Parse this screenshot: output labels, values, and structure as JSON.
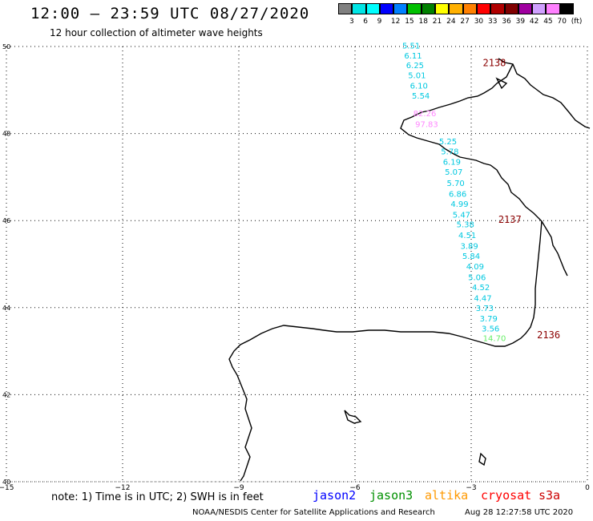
{
  "title": "12:00 – 23:59 UTC 08/27/2020",
  "subtitle": "12 hour collection of altimeter wave heights",
  "legend": {
    "colors": [
      "#808080",
      "#00e5e5",
      "#00ffff",
      "#0000ff",
      "#0080ff",
      "#00c000",
      "#008000",
      "#ffff00",
      "#ffb000",
      "#ff8000",
      "#ff0000",
      "#b00000",
      "#800000",
      "#a000a0",
      "#d0a0ff",
      "#ff80ff",
      "#000000"
    ],
    "labels": [
      "3",
      "6",
      "9",
      "12",
      "15",
      "18",
      "21",
      "24",
      "27",
      "30",
      "33",
      "36",
      "39",
      "42",
      "45",
      "70",
      "(ft)"
    ]
  },
  "axes": {
    "x_ticks": [
      "−15",
      "−12",
      "−9",
      "−6",
      "−3",
      "0"
    ],
    "y_ticks": [
      "50",
      "48",
      "46",
      "44",
      "42",
      "40"
    ]
  },
  "chart_data": {
    "type": "scatter",
    "xlim": [
      -15,
      0
    ],
    "ylim": [
      40,
      50
    ],
    "grid": true,
    "passes": [
      {
        "label": "2138",
        "color": "#8b0000",
        "lon": -2.7,
        "lat": 49.55
      },
      {
        "label": "2137",
        "color": "#8b0000",
        "lon": -2.3,
        "lat": 45.95
      },
      {
        "label": "2136",
        "color": "#8b0000",
        "lon": -1.3,
        "lat": 43.3
      }
    ],
    "points": [
      {
        "lon": -4.55,
        "lat": 49.95,
        "value": "5.51",
        "color": "#00c8e0"
      },
      {
        "lon": -4.5,
        "lat": 49.72,
        "value": "6.11",
        "color": "#00c8e0"
      },
      {
        "lon": -4.45,
        "lat": 49.5,
        "value": "6.25",
        "color": "#00c8e0"
      },
      {
        "lon": -4.4,
        "lat": 49.27,
        "value": "5.01",
        "color": "#00c8e0"
      },
      {
        "lon": -4.35,
        "lat": 49.03,
        "value": "6.10",
        "color": "#00c8e0"
      },
      {
        "lon": -4.3,
        "lat": 48.8,
        "value": "5.54",
        "color": "#00c8e0"
      },
      {
        "lon": -4.2,
        "lat": 48.4,
        "value": "82.26",
        "color": "#ff88ff"
      },
      {
        "lon": -4.15,
        "lat": 48.15,
        "value": "97.83",
        "color": "#ff88ff"
      },
      {
        "lon": -3.6,
        "lat": 47.75,
        "value": "5.25",
        "color": "#00c8e0"
      },
      {
        "lon": -3.55,
        "lat": 47.52,
        "value": "5.78",
        "color": "#00c8e0"
      },
      {
        "lon": -3.5,
        "lat": 47.28,
        "value": "6.19",
        "color": "#00c8e0"
      },
      {
        "lon": -3.45,
        "lat": 47.05,
        "value": "5.07",
        "color": "#00c8e0"
      },
      {
        "lon": -3.4,
        "lat": 46.8,
        "value": "5.70",
        "color": "#00c8e0"
      },
      {
        "lon": -3.35,
        "lat": 46.55,
        "value": "6.86",
        "color": "#00c8e0"
      },
      {
        "lon": -3.3,
        "lat": 46.32,
        "value": "4.99",
        "color": "#00c8e0"
      },
      {
        "lon": -3.25,
        "lat": 46.07,
        "value": "5.47",
        "color": "#00c8e0"
      },
      {
        "lon": -3.15,
        "lat": 45.85,
        "value": "5.38",
        "color": "#00c8e0"
      },
      {
        "lon": -3.1,
        "lat": 45.6,
        "value": "4.51",
        "color": "#00c8e0"
      },
      {
        "lon": -3.05,
        "lat": 45.35,
        "value": "3.89",
        "color": "#00c8e0"
      },
      {
        "lon": -3.0,
        "lat": 45.12,
        "value": "5.84",
        "color": "#00c8e0"
      },
      {
        "lon": -2.9,
        "lat": 44.88,
        "value": "4.09",
        "color": "#00c8e0"
      },
      {
        "lon": -2.85,
        "lat": 44.63,
        "value": "5.06",
        "color": "#00c8e0"
      },
      {
        "lon": -2.75,
        "lat": 44.4,
        "value": "4.52",
        "color": "#00c8e0"
      },
      {
        "lon": -2.7,
        "lat": 44.15,
        "value": "4.47",
        "color": "#00c8e0"
      },
      {
        "lon": -2.65,
        "lat": 43.92,
        "value": "3.73",
        "color": "#00c8e0"
      },
      {
        "lon": -2.55,
        "lat": 43.68,
        "value": "3.79",
        "color": "#00c8e0"
      },
      {
        "lon": -2.5,
        "lat": 43.45,
        "value": "3.56",
        "color": "#00c8e0"
      },
      {
        "lon": -2.4,
        "lat": 43.23,
        "value": "14.70",
        "color": "#66ee66"
      }
    ]
  },
  "note": "note: 1) Time is in UTC; 2) SWH is in feet",
  "satellites": [
    {
      "name": "jason2",
      "color": "#0000ff"
    },
    {
      "name": "jason3",
      "color": "#009000"
    },
    {
      "name": "altika",
      "color": "#ff9900"
    },
    {
      "name": "cryosat",
      "color": "#ff0000"
    },
    {
      "name": "s3a",
      "color": "#cc0000"
    }
  ],
  "credit": "NOAA/NESDIS Center for Satellite Applications and Research",
  "timestamp": "Aug 28 12:27:58 UTC 2020"
}
